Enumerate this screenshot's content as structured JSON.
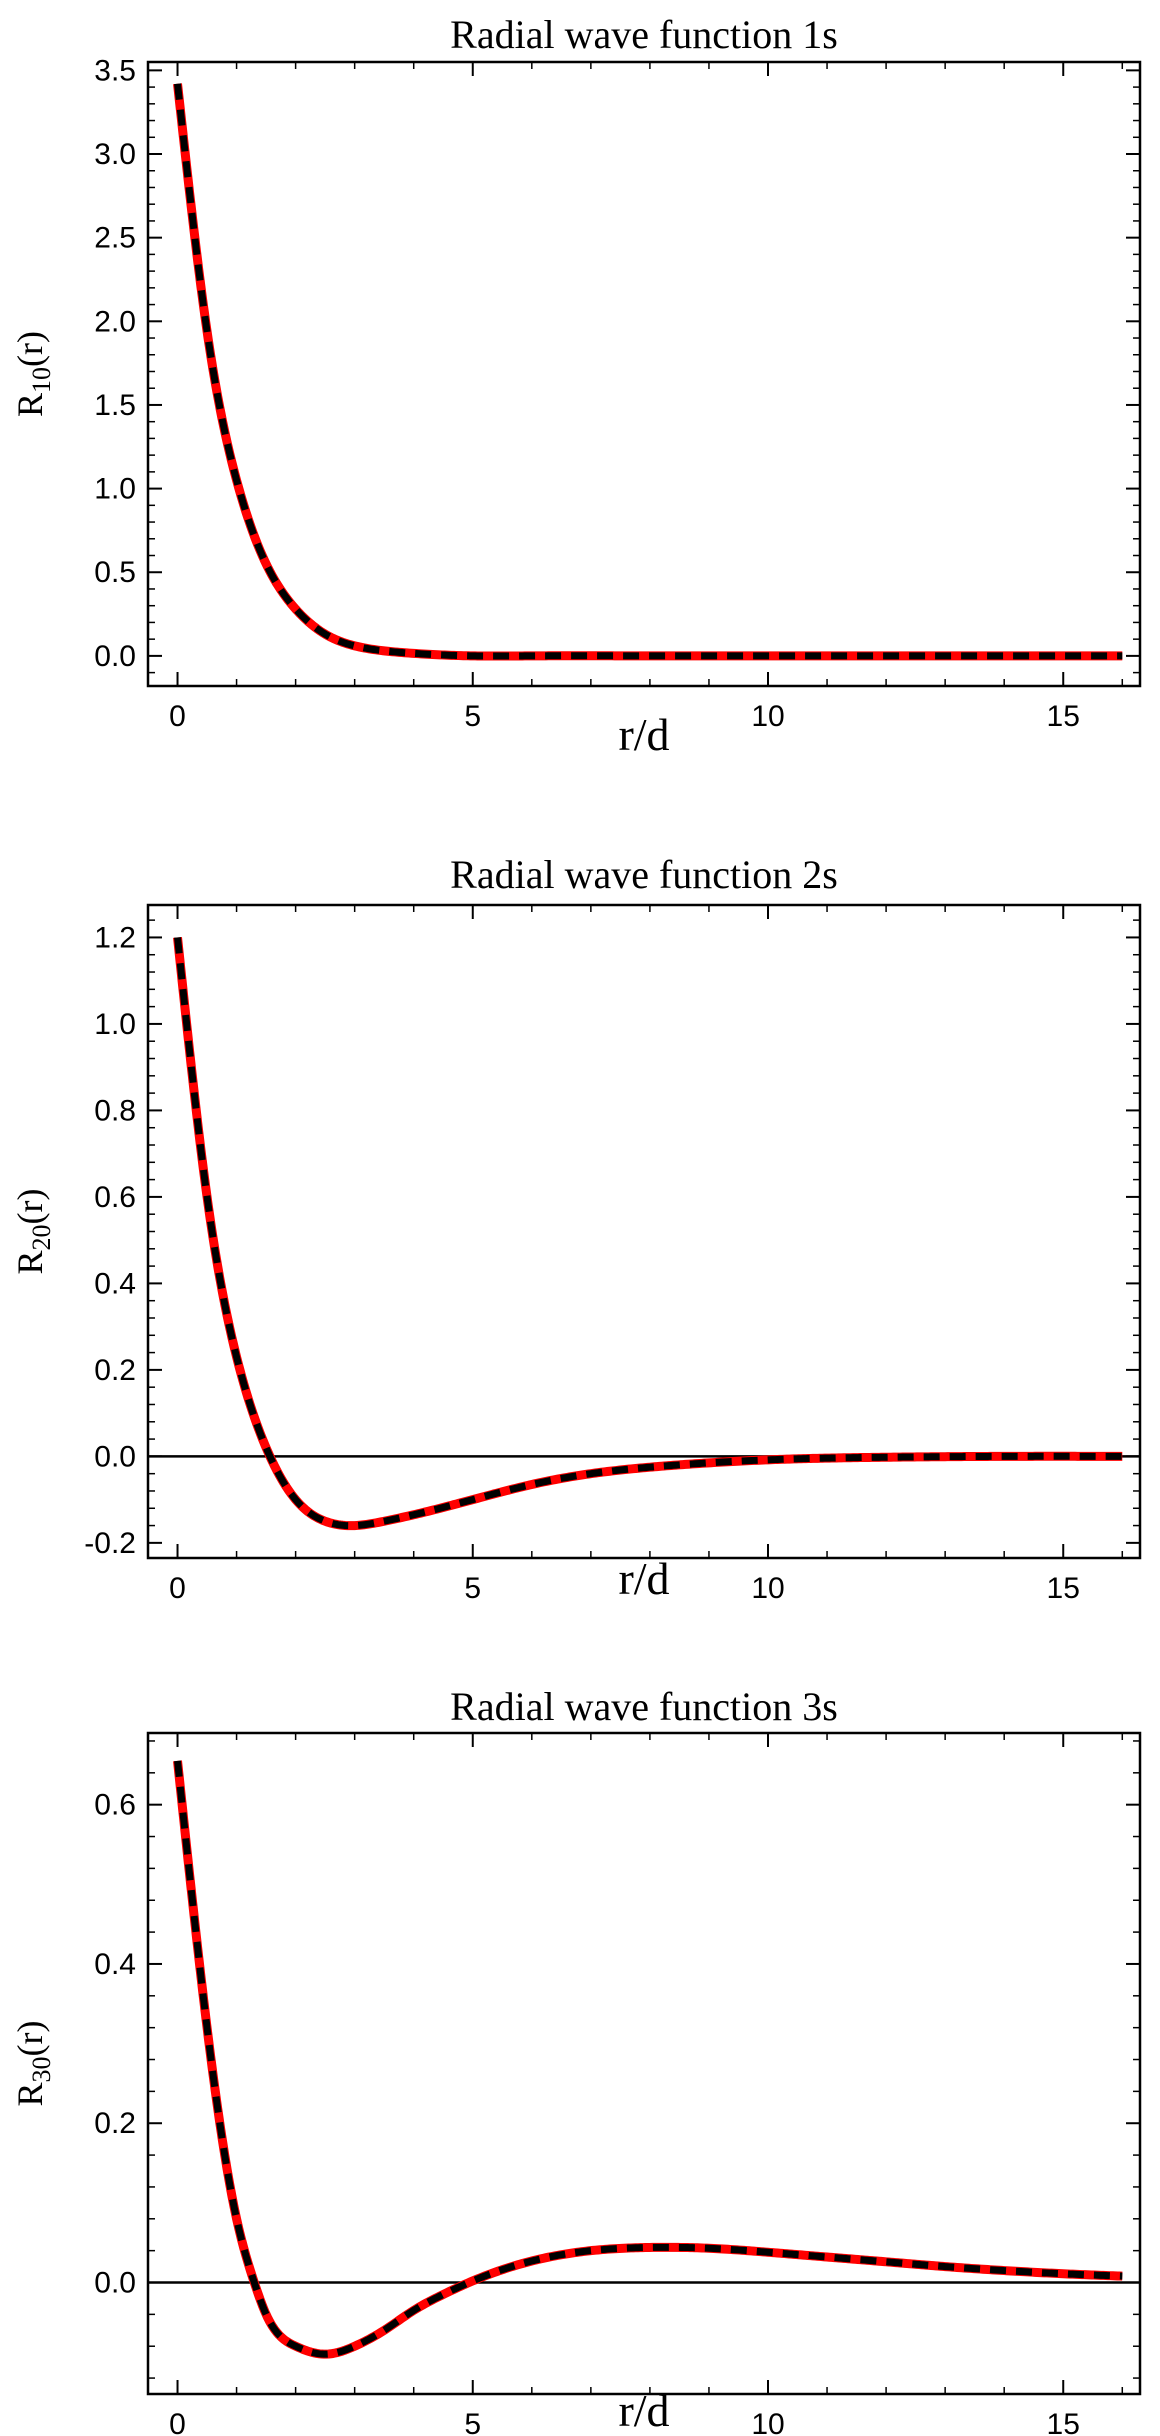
{
  "chart_data": [
    {
      "type": "line",
      "title": "Radial wave function 1s",
      "xlabel": "r/d",
      "ylabel_base": "R",
      "ylabel_sub": "10",
      "ylabel_suffix": "(r)",
      "xlim": [
        -0.5,
        16.3
      ],
      "ylim": [
        -0.18,
        3.55
      ],
      "xticks": [
        0,
        5,
        10,
        15
      ],
      "xtick_labels": [
        "0",
        "5",
        "10",
        "15"
      ],
      "yticks": [
        0.0,
        0.5,
        1.0,
        1.5,
        2.0,
        2.5,
        3.0,
        3.5
      ],
      "ytick_labels": [
        "0.0",
        "0.5",
        "1.0",
        "1.5",
        "2.0",
        "2.5",
        "3.0",
        "3.5"
      ],
      "zero_line": false,
      "series": [
        {
          "name": "solid red",
          "color": "#ff0000",
          "style": "solid"
        },
        {
          "name": "dashed black",
          "color": "#000000",
          "style": "dashed"
        }
      ],
      "x": [
        0.0,
        0.5,
        1.0,
        1.5,
        2.0,
        2.5,
        3.0,
        3.5,
        4.0,
        5.0,
        6.0,
        8.0,
        10.0,
        12.0,
        14.0,
        16.0
      ],
      "y": [
        3.42,
        1.94,
        1.05,
        0.55,
        0.28,
        0.13,
        0.06,
        0.03,
        0.015,
        0.0,
        0.0,
        0.0,
        0.0,
        0.0,
        0.0,
        0.0
      ]
    },
    {
      "type": "line",
      "title": "Radial wave function 2s",
      "xlabel": "r/d",
      "ylabel_base": "R",
      "ylabel_sub": "20",
      "ylabel_suffix": "(r)",
      "xlim": [
        -0.5,
        16.3
      ],
      "ylim": [
        -0.235,
        1.275
      ],
      "xticks": [
        0,
        5,
        10,
        15
      ],
      "xtick_labels": [
        "0",
        "5",
        "10",
        "15"
      ],
      "yticks": [
        -0.2,
        0.0,
        0.2,
        0.4,
        0.6,
        0.8,
        1.0,
        1.2
      ],
      "ytick_labels": [
        "-0.2",
        "0.0",
        "0.2",
        "0.4",
        "0.6",
        "0.8",
        "1.0",
        "1.2"
      ],
      "zero_line": true,
      "series": [
        {
          "name": "solid red",
          "color": "#ff0000",
          "style": "solid"
        },
        {
          "name": "dashed black",
          "color": "#000000",
          "style": "dashed"
        }
      ],
      "x": [
        0.0,
        0.5,
        1.0,
        1.5,
        2.0,
        2.5,
        3.0,
        3.5,
        4.0,
        5.0,
        6.0,
        7.0,
        8.0,
        9.0,
        10.0,
        12.0,
        14.0,
        16.0
      ],
      "y": [
        1.2,
        0.6,
        0.23,
        0.02,
        -0.1,
        -0.15,
        -0.16,
        -0.15,
        -0.135,
        -0.1,
        -0.065,
        -0.04,
        -0.025,
        -0.015,
        -0.008,
        -0.002,
        0.0,
        0.0
      ]
    },
    {
      "type": "line",
      "title": "Radial wave function 3s",
      "xlabel": "r/d",
      "ylabel_base": "R",
      "ylabel_sub": "30",
      "ylabel_suffix": "(r)",
      "xlim": [
        -0.5,
        16.3
      ],
      "ylim": [
        -0.14,
        0.69
      ],
      "xticks": [
        0,
        5,
        10,
        15
      ],
      "xtick_labels": [
        "0",
        "5",
        "10",
        "15"
      ],
      "yticks": [
        0.0,
        0.2,
        0.4,
        0.6
      ],
      "ytick_labels": [
        "0.0",
        "0.2",
        "0.4",
        "0.6"
      ],
      "zero_line": true,
      "series": [
        {
          "name": "solid red",
          "color": "#ff0000",
          "style": "solid"
        },
        {
          "name": "dashed black",
          "color": "#000000",
          "style": "dashed"
        }
      ],
      "x": [
        0.0,
        0.5,
        1.0,
        1.3,
        1.5,
        2.0,
        2.5,
        3.0,
        3.5,
        4.0,
        4.5,
        5.0,
        6.0,
        7.0,
        8.0,
        9.0,
        10.0,
        11.0,
        12.0,
        13.0,
        14.0,
        15.0,
        16.0
      ],
      "y": [
        0.655,
        0.32,
        0.08,
        0.0,
        -0.04,
        -0.08,
        -0.09,
        -0.08,
        -0.06,
        -0.035,
        -0.015,
        0.002,
        0.027,
        0.04,
        0.044,
        0.043,
        0.038,
        0.032,
        0.026,
        0.02,
        0.015,
        0.011,
        0.008
      ]
    }
  ]
}
